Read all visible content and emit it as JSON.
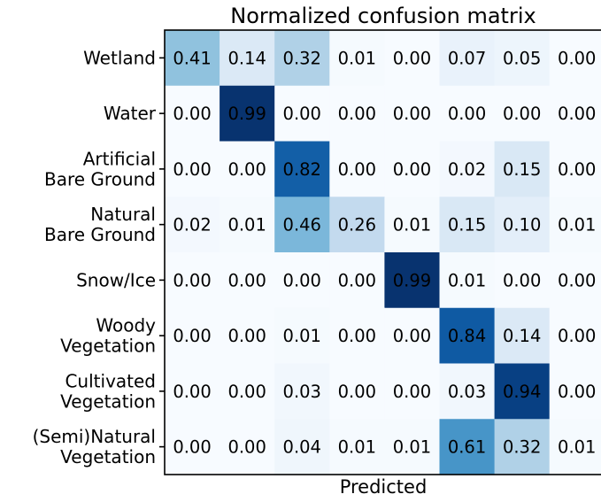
{
  "chart_data": {
    "type": "heatmap",
    "title": "Normalized confusion matrix",
    "xlabel": "Predicted",
    "ylabel": "",
    "colormap": "Blues",
    "value_range": [
      0,
      1
    ],
    "row_labels": [
      [
        "Wetland"
      ],
      [
        "Water"
      ],
      [
        "Artificial",
        "Bare Ground"
      ],
      [
        "Natural",
        "Bare Ground"
      ],
      [
        "Snow/Ice"
      ],
      [
        "Woody",
        "Vegetation"
      ],
      [
        "Cultivated",
        "Vegetation"
      ],
      [
        "(Semi)Natural",
        "Vegetation"
      ]
    ],
    "values": [
      [
        "0.41",
        "0.14",
        "0.32",
        "0.01",
        "0.00",
        "0.07",
        "0.05",
        "0.00"
      ],
      [
        "0.00",
        "0.99",
        "0.00",
        "0.00",
        "0.00",
        "0.00",
        "0.00",
        "0.00"
      ],
      [
        "0.00",
        "0.00",
        "0.82",
        "0.00",
        "0.00",
        "0.02",
        "0.15",
        "0.00"
      ],
      [
        "0.02",
        "0.01",
        "0.46",
        "0.26",
        "0.01",
        "0.15",
        "0.10",
        "0.01"
      ],
      [
        "0.00",
        "0.00",
        "0.00",
        "0.00",
        "0.99",
        "0.01",
        "0.00",
        "0.00"
      ],
      [
        "0.00",
        "0.00",
        "0.01",
        "0.00",
        "0.00",
        "0.84",
        "0.14",
        "0.00"
      ],
      [
        "0.00",
        "0.00",
        "0.03",
        "0.00",
        "0.00",
        "0.03",
        "0.94",
        "0.00"
      ],
      [
        "0.00",
        "0.00",
        "0.04",
        "0.01",
        "0.01",
        "0.61",
        "0.32",
        "0.01"
      ]
    ]
  }
}
